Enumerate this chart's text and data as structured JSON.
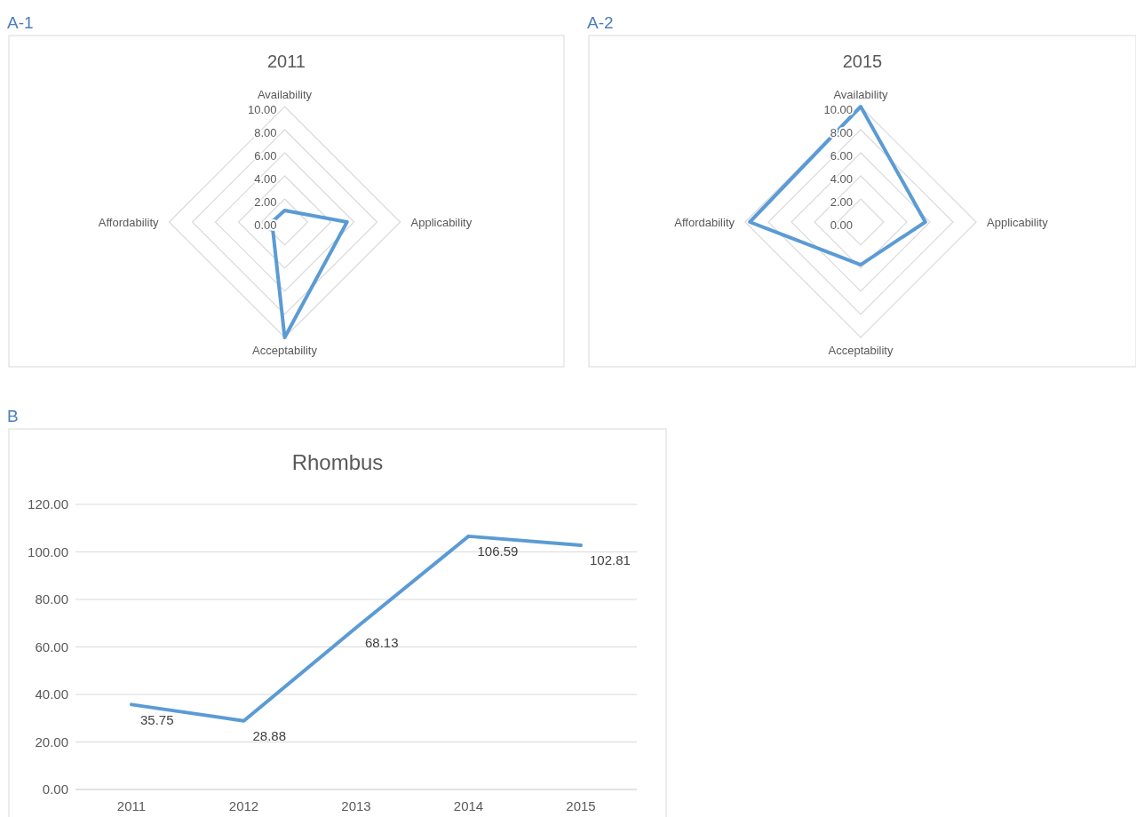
{
  "chart_data": [
    {
      "type": "radar",
      "title": "2011",
      "annotations": [
        "A-1"
      ],
      "categories": [
        "Availability",
        "Applicability",
        "Acceptability",
        "Affordability"
      ],
      "series": [
        {
          "color": "#5b9bd5",
          "values": [
            1.0,
            5.4,
            10.0,
            1.1
          ]
        }
      ],
      "ylim": [
        0,
        10
      ],
      "yticks": [
        {
          "value": 0,
          "label": "0.00"
        },
        {
          "value": 2,
          "label": "2.00"
        },
        {
          "value": 4,
          "label": "4.00"
        },
        {
          "value": 6,
          "label": "6.00"
        },
        {
          "value": 8,
          "label": "8.00"
        },
        {
          "value": 10,
          "label": "10.00"
        }
      ],
      "grid": true
    },
    {
      "type": "radar",
      "title": "2015",
      "annotations": [
        "A-2"
      ],
      "categories": [
        "Availability",
        "Applicability",
        "Acceptability",
        "Affordability"
      ],
      "series": [
        {
          "color": "#5b9bd5",
          "values": [
            10.0,
            5.6,
            3.7,
            9.6
          ]
        }
      ],
      "ylim": [
        0,
        10
      ],
      "yticks": [
        {
          "value": 0,
          "label": "0.00"
        },
        {
          "value": 2,
          "label": "2.00"
        },
        {
          "value": 4,
          "label": "4.00"
        },
        {
          "value": 6,
          "label": "6.00"
        },
        {
          "value": 8,
          "label": "8.00"
        },
        {
          "value": 10,
          "label": "10.00"
        }
      ],
      "grid": true
    },
    {
      "type": "line",
      "title": "Rhombus",
      "annotations": [
        "B"
      ],
      "categories": [
        "2011",
        "2012",
        "2013",
        "2014",
        "2015"
      ],
      "series": [
        {
          "color": "#5b9bd5",
          "values": [
            35.75,
            28.88,
            68.13,
            106.59,
            102.81
          ]
        }
      ],
      "ylim": [
        0,
        120
      ],
      "yticks": [
        {
          "value": 0,
          "label": "0.00"
        },
        {
          "value": 20,
          "label": "20.00"
        },
        {
          "value": 40,
          "label": "40.00"
        },
        {
          "value": 60,
          "label": "60.00"
        },
        {
          "value": 80,
          "label": "80.00"
        },
        {
          "value": 100,
          "label": "100.00"
        },
        {
          "value": 120,
          "label": "120.00"
        }
      ],
      "grid": "y",
      "data_labels": true
    }
  ]
}
